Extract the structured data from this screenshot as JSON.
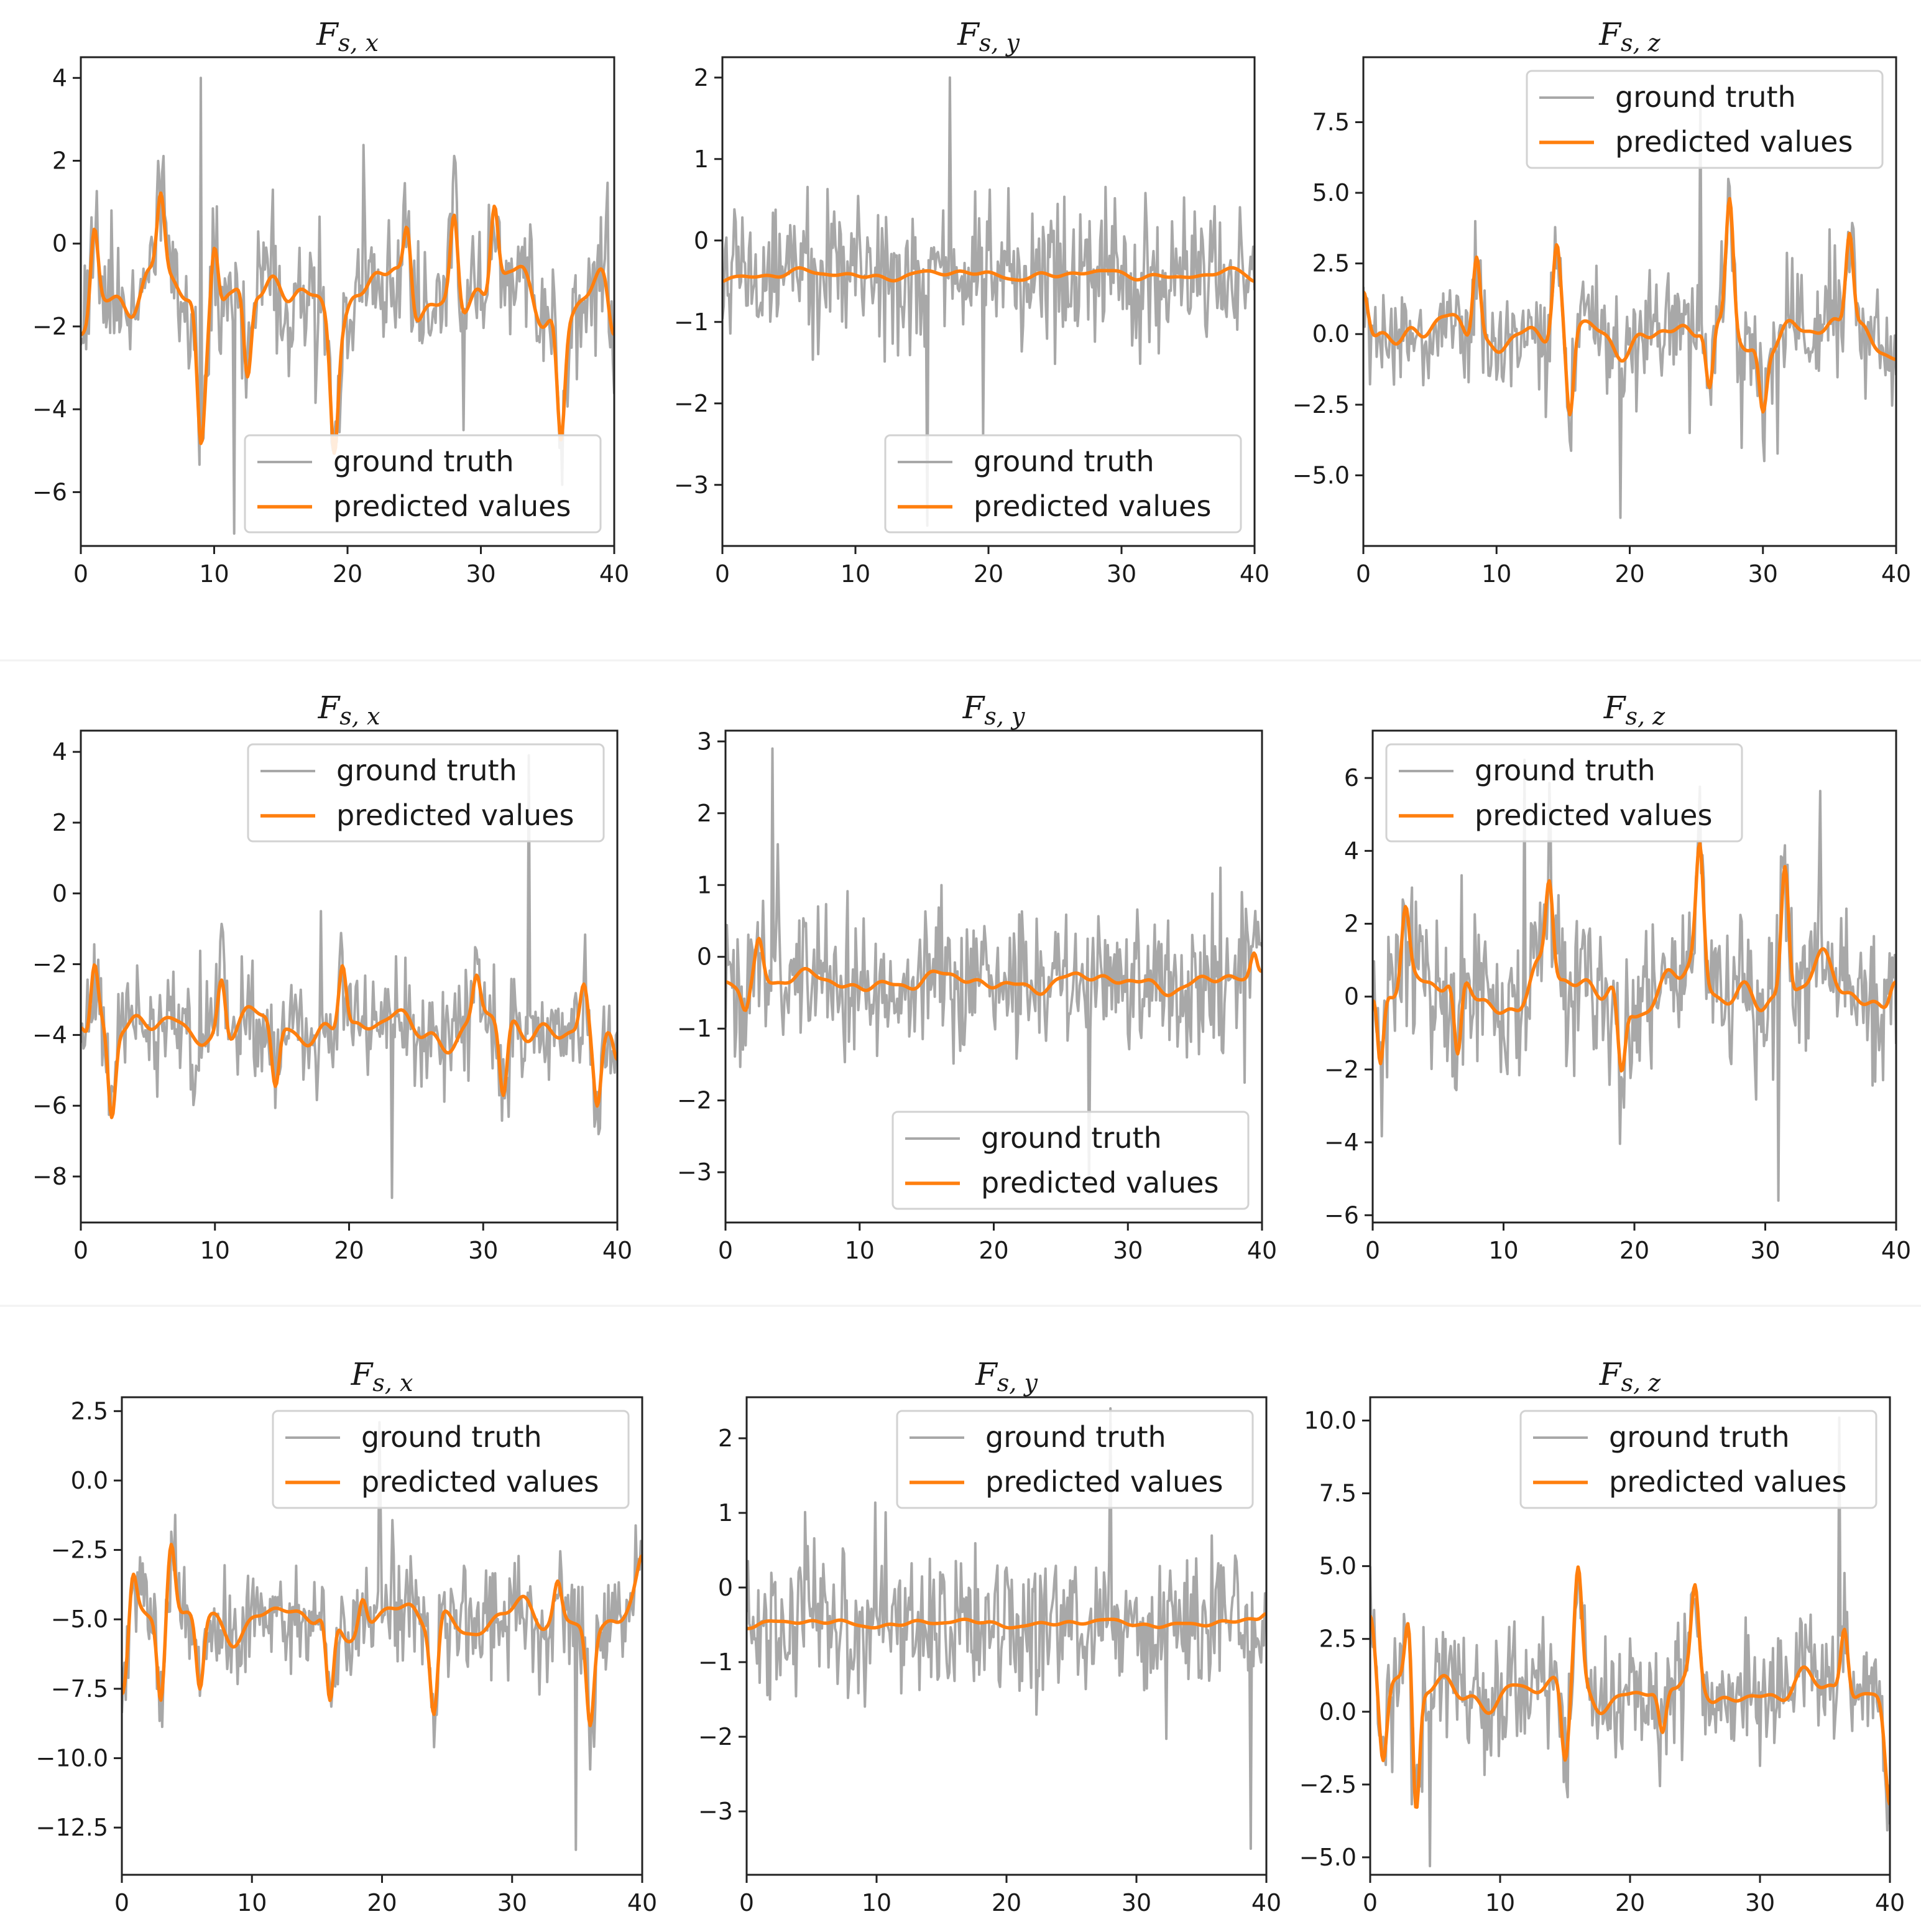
{
  "colors": {
    "ground_truth": "#a8a8a8",
    "predicted": "#ff7f0e"
  },
  "chart_data": [
    {
      "type": "line",
      "title": {
        "base": "F",
        "subscript": "s, x"
      },
      "xlim": [
        0,
        40
      ],
      "ylim": [
        -7.3,
        4.5
      ],
      "xticks": [
        0,
        10,
        20,
        30,
        40
      ],
      "yticks": [
        4,
        2,
        0,
        -2,
        -4,
        -6
      ],
      "ytick_labels": [
        "4",
        "2",
        "0",
        "−2",
        "−4",
        "−6"
      ],
      "legend_placement": "lower-right",
      "series": [
        {
          "name": "ground truth",
          "mean": -1.3,
          "noise": 1.3,
          "min": -7,
          "max": 4
        },
        {
          "name": "predicted values",
          "mean": -1.3,
          "amplitude": 1.0,
          "start": -2.2,
          "end": -2.2,
          "dips": [
            [
              9,
              -4.3
            ],
            [
              12.5,
              -3.6
            ],
            [
              19,
              -4.1
            ],
            [
              36,
              -4.2
            ]
          ],
          "peaks": [
            [
              1,
              0.6
            ],
            [
              6,
              0.7
            ],
            [
              10,
              0.8
            ],
            [
              24.5,
              0.5
            ],
            [
              28,
              0.9
            ],
            [
              31,
              0.9
            ]
          ]
        }
      ]
    },
    {
      "type": "line",
      "title": {
        "base": "F",
        "subscript": "s, y"
      },
      "xlim": [
        0,
        40
      ],
      "ylim": [
        -3.75,
        2.25
      ],
      "xticks": [
        0,
        10,
        20,
        30,
        40
      ],
      "yticks": [
        2,
        1,
        0,
        -1,
        -2,
        -3
      ],
      "ytick_labels": [
        "2",
        "1",
        "0",
        "−1",
        "−2",
        "−3"
      ],
      "legend_placement": "lower-right",
      "series": [
        {
          "name": "ground truth",
          "mean": -0.45,
          "noise": 0.75,
          "min": -3.5,
          "max": 2.0
        },
        {
          "name": "predicted values",
          "mean": -0.42,
          "amplitude": 0.08,
          "start": -0.5,
          "end": -0.5,
          "dips": [],
          "peaks": []
        }
      ]
    },
    {
      "type": "line",
      "title": {
        "base": "F",
        "subscript": "s, z"
      },
      "xlim": [
        0,
        40
      ],
      "ylim": [
        -7.5,
        9.8
      ],
      "xticks": [
        0,
        10,
        20,
        30,
        40
      ],
      "yticks": [
        7.5,
        5.0,
        2.5,
        0.0,
        -2.5,
        -5.0
      ],
      "ytick_labels": [
        "7.5",
        "5.0",
        "2.5",
        "0.0",
        "−2.5",
        "−5.0"
      ],
      "legend_placement": "upper-right",
      "series": [
        {
          "name": "ground truth",
          "mean": 0.0,
          "noise": 1.6,
          "min": -6.5,
          "max": 8.5
        },
        {
          "name": "predicted values",
          "mean": 0.0,
          "amplitude": 0.9,
          "start": 1.5,
          "end": -0.9,
          "dips": [
            [
              15.5,
              -3.3
            ],
            [
              26,
              -2.6
            ],
            [
              30,
              -2.3
            ]
          ],
          "peaks": [
            [
              8.5,
              3.2
            ],
            [
              27.5,
              4.8
            ],
            [
              36.5,
              3.5
            ],
            [
              14.5,
              2.9
            ]
          ]
        }
      ]
    },
    {
      "type": "line",
      "title": {
        "base": "F",
        "subscript": "s, x"
      },
      "xlim": [
        0,
        40
      ],
      "ylim": [
        -9.3,
        4.6
      ],
      "xticks": [
        0,
        10,
        20,
        30,
        40
      ],
      "yticks": [
        4,
        2,
        0,
        -2,
        -4,
        -6,
        -8
      ],
      "ytick_labels": [
        "4",
        "2",
        "0",
        "−2",
        "−4",
        "−6",
        "−8"
      ],
      "legend_placement": "upper-right",
      "series": [
        {
          "name": "ground truth",
          "mean": -3.8,
          "noise": 1.3,
          "min": -8.6,
          "max": 3.9
        },
        {
          "name": "predicted values",
          "mean": -3.8,
          "amplitude": 0.7,
          "start": -3.8,
          "end": -4.7,
          "dips": [
            [
              2.3,
              -6.5
            ],
            [
              14.5,
              -5.7
            ],
            [
              31.5,
              -6.0
            ],
            [
              38.5,
              -5.9
            ]
          ],
          "peaks": [
            [
              1.0,
              -1.8
            ],
            [
              10.5,
              -2.1
            ],
            [
              19.5,
              -1.8
            ],
            [
              29.5,
              -2.6
            ],
            [
              37.5,
              -2.4
            ]
          ]
        }
      ]
    },
    {
      "type": "line",
      "title": {
        "base": "F",
        "subscript": "s, y"
      },
      "xlim": [
        0,
        40
      ],
      "ylim": [
        -3.7,
        3.15
      ],
      "xticks": [
        0,
        10,
        20,
        30,
        40
      ],
      "yticks": [
        3,
        2,
        1,
        0,
        -1,
        -2,
        -3
      ],
      "ytick_labels": [
        "3",
        "2",
        "1",
        "0",
        "−1",
        "−2",
        "−3"
      ],
      "legend_placement": "lower-right",
      "series": [
        {
          "name": "ground truth",
          "mean": -0.35,
          "noise": 0.85,
          "min": -3.3,
          "max": 2.9
        },
        {
          "name": "predicted values",
          "mean": -0.35,
          "amplitude": 0.18,
          "start": -0.35,
          "end": -0.2,
          "dips": [
            [
              1.5,
              -0.7
            ]
          ],
          "peaks": [
            [
              2.5,
              0.2
            ],
            [
              39.5,
              0.1
            ]
          ]
        }
      ]
    },
    {
      "type": "line",
      "title": {
        "base": "F",
        "subscript": "s, z"
      },
      "xlim": [
        0,
        40
      ],
      "ylim": [
        -6.2,
        7.3
      ],
      "xticks": [
        0,
        10,
        20,
        30,
        40
      ],
      "yticks": [
        6,
        4,
        2,
        0,
        -2,
        -4,
        -6
      ],
      "ytick_labels": [
        "6",
        "4",
        "2",
        "0",
        "−2",
        "−4",
        "−6"
      ],
      "legend_placement": "upper-left",
      "series": [
        {
          "name": "ground truth",
          "mean": 0.2,
          "noise": 1.8,
          "min": -5.6,
          "max": 6.5
        },
        {
          "name": "predicted values",
          "mean": 0.2,
          "amplitude": 1.0,
          "start": -0.1,
          "end": 0.4,
          "dips": [
            [
              0.5,
              -2.5
            ],
            [
              6.5,
              -2.3
            ],
            [
              19,
              -2.0
            ]
          ],
          "peaks": [
            [
              2.5,
              2.1
            ],
            [
              25,
              3.6
            ],
            [
              31.5,
              3.9
            ],
            [
              13.5,
              2.8
            ]
          ]
        }
      ]
    },
    {
      "type": "line",
      "title": {
        "base": "F",
        "subscript": "s, x"
      },
      "xlim": [
        0,
        40
      ],
      "ylim": [
        -14.2,
        3.0
      ],
      "xticks": [
        0,
        10,
        20,
        30,
        40
      ],
      "yticks": [
        2.5,
        0.0,
        -2.5,
        -5.0,
        -7.5,
        -10.0,
        -12.5
      ],
      "ytick_labels": [
        "2.5",
        "0.0",
        "−2.5",
        "−5.0",
        "−7.5",
        "−10.0",
        "−12.5"
      ],
      "legend_placement": "upper-right",
      "series": [
        {
          "name": "ground truth",
          "mean": -5.0,
          "noise": 1.5,
          "min": -13.3,
          "max": 2.1
        },
        {
          "name": "predicted values",
          "mean": -5.0,
          "amplitude": 0.9,
          "start": -7.7,
          "end": -2.7,
          "dips": [
            [
              3,
              -8.2
            ],
            [
              16,
              -8.3
            ],
            [
              24,
              -8.3
            ],
            [
              36,
              -8.3
            ],
            [
              6,
              -7.6
            ]
          ],
          "peaks": [
            [
              0.8,
              -3.3
            ],
            [
              3.8,
              -2.5
            ],
            [
              18.5,
              -3.9
            ],
            [
              33.5,
              -3.7
            ]
          ]
        }
      ]
    },
    {
      "type": "line",
      "title": {
        "base": "F",
        "subscript": "s, y"
      },
      "xlim": [
        0,
        40
      ],
      "ylim": [
        -3.85,
        2.55
      ],
      "xticks": [
        0,
        10,
        20,
        30,
        40
      ],
      "yticks": [
        2,
        1,
        0,
        -1,
        -2,
        -3
      ],
      "ytick_labels": [
        "2",
        "1",
        "0",
        "−1",
        "−2",
        "−3"
      ],
      "legend_placement": "upper-right",
      "series": [
        {
          "name": "ground truth",
          "mean": -0.5,
          "noise": 0.8,
          "min": -3.5,
          "max": 2.4
        },
        {
          "name": "predicted values",
          "mean": -0.48,
          "amplitude": 0.07,
          "start": -0.55,
          "end": -0.35,
          "dips": [],
          "peaks": []
        }
      ]
    },
    {
      "type": "line",
      "title": {
        "base": "F",
        "subscript": "s, z"
      },
      "xlim": [
        0,
        40
      ],
      "ylim": [
        -5.6,
        10.8
      ],
      "xticks": [
        0,
        10,
        20,
        30,
        40
      ],
      "yticks": [
        10.0,
        7.5,
        5.0,
        2.5,
        0.0,
        -2.5,
        -5.0
      ],
      "ytick_labels": [
        "10.0",
        "7.5",
        "5.0",
        "2.5",
        "0.0",
        "−2.5",
        "−5.0"
      ],
      "legend_placement": "upper-right",
      "series": [
        {
          "name": "ground truth",
          "mean": 0.7,
          "noise": 1.7,
          "min": -5.3,
          "max": 10.1
        },
        {
          "name": "predicted values",
          "mean": 0.7,
          "amplitude": 0.8,
          "start": 3.3,
          "end": -3.2,
          "dips": [
            [
              1,
              -1.6
            ],
            [
              3.5,
              -4.0
            ],
            [
              15,
              -1.9
            ],
            [
              22.5,
              -0.9
            ]
          ],
          "peaks": [
            [
              3,
              3.3
            ],
            [
              16,
              4.6
            ],
            [
              25,
              3.6
            ],
            [
              36.5,
              3.1
            ]
          ]
        }
      ]
    }
  ]
}
